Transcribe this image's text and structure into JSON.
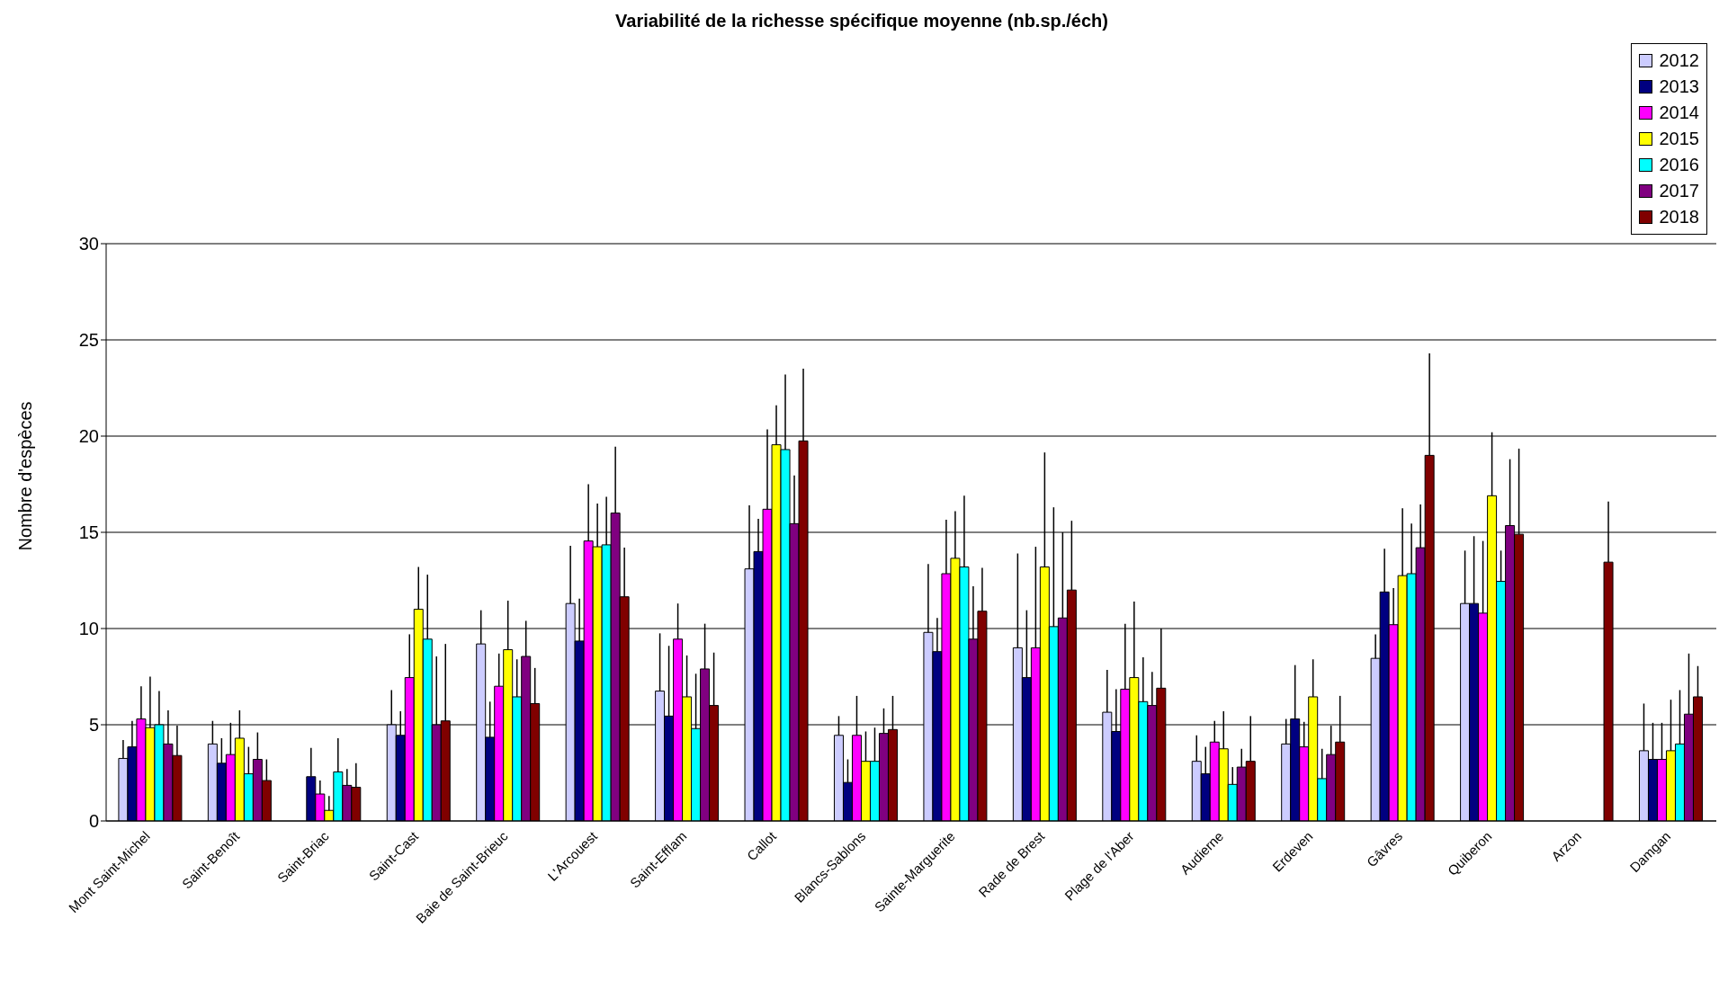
{
  "chart_data": {
    "type": "bar",
    "title": "Variabilité de la richesse spécifique moyenne (nb.sp./éch)",
    "ylabel": "Nombre d'espèces",
    "categories": [
      "Mont Saint-Michel",
      "Saint-Benoît",
      "Saint-Briac",
      "Saint-Cast",
      "Baie de Saint-Brieuc",
      "L'Arcouest",
      "Saint-Efflam",
      "Callot",
      "Blancs-Sablons",
      "Sainte-Marguerite",
      "Rade de Brest",
      "Plage de l'Aber",
      "Audierne",
      "Erdeven",
      "Gâvres",
      "Quiberon",
      "Arzon",
      "Damgan"
    ],
    "ylim": [
      0,
      30
    ],
    "yticks": [
      0,
      5,
      10,
      15,
      20,
      25,
      30
    ],
    "grid": "y",
    "legend": "top right",
    "series": [
      {
        "name": "2012",
        "color": "#ccccff",
        "values": [
          3.25,
          4.0,
          null,
          5.0,
          9.2,
          11.3,
          6.75,
          13.1,
          4.45,
          9.8,
          9.0,
          5.65,
          3.1,
          4.0,
          8.45,
          11.3,
          null,
          3.65
        ],
        "errors": [
          [
            3.25,
            4.2
          ],
          [
            4.0,
            5.2
          ],
          null,
          [
            5.0,
            6.8
          ],
          [
            9.2,
            10.95
          ],
          [
            11.3,
            14.3
          ],
          [
            6.75,
            9.75
          ],
          [
            13.1,
            16.4
          ],
          [
            4.45,
            5.45
          ],
          [
            9.8,
            13.35
          ],
          [
            9.0,
            13.9
          ],
          [
            5.65,
            7.85
          ],
          [
            3.1,
            4.45
          ],
          [
            4.0,
            5.3
          ],
          [
            8.45,
            9.7
          ],
          [
            11.3,
            14.05
          ],
          null,
          [
            3.65,
            6.1
          ]
        ]
      },
      {
        "name": "2013",
        "color": "#000080",
        "values": [
          3.85,
          3.0,
          2.3,
          4.45,
          4.35,
          9.35,
          5.45,
          14.0,
          2.0,
          8.8,
          7.45,
          4.65,
          2.45,
          5.3,
          11.9,
          11.3,
          null,
          3.2
        ],
        "errors": [
          [
            3.85,
            5.2
          ],
          [
            3.0,
            4.3
          ],
          [
            2.3,
            3.8
          ],
          [
            4.45,
            5.7
          ],
          [
            4.35,
            6.2
          ],
          [
            9.35,
            11.55
          ],
          [
            5.45,
            9.1
          ],
          [
            14.0,
            15.7
          ],
          [
            2.0,
            3.2
          ],
          [
            8.8,
            10.55
          ],
          [
            7.45,
            10.95
          ],
          [
            4.65,
            6.85
          ],
          [
            2.45,
            3.85
          ],
          [
            5.3,
            8.1
          ],
          [
            11.9,
            14.15
          ],
          [
            11.3,
            14.8
          ],
          null,
          [
            3.2,
            5.1
          ]
        ]
      },
      {
        "name": "2014",
        "color": "#ff00ff",
        "values": [
          5.3,
          3.45,
          1.4,
          7.45,
          7.0,
          14.55,
          9.45,
          16.2,
          4.45,
          12.85,
          9.0,
          6.85,
          4.1,
          3.85,
          10.2,
          10.8,
          null,
          3.2
        ],
        "errors": [
          [
            5.3,
            7.0
          ],
          [
            3.45,
            5.1
          ],
          [
            1.4,
            2.1
          ],
          [
            7.45,
            9.7
          ],
          [
            7.0,
            8.7
          ],
          [
            14.55,
            17.5
          ],
          [
            9.45,
            11.3
          ],
          [
            16.2,
            20.35
          ],
          [
            4.45,
            6.5
          ],
          [
            12.85,
            15.65
          ],
          [
            9.0,
            14.25
          ],
          [
            6.85,
            10.25
          ],
          [
            4.1,
            5.2
          ],
          [
            3.85,
            5.15
          ],
          [
            10.2,
            12.1
          ],
          [
            10.8,
            14.55
          ],
          null,
          [
            3.2,
            5.1
          ]
        ]
      },
      {
        "name": "2015",
        "color": "#ffff00",
        "values": [
          4.85,
          4.3,
          0.55,
          11.0,
          8.9,
          14.25,
          6.45,
          19.55,
          3.1,
          13.65,
          13.2,
          7.45,
          3.75,
          6.45,
          12.75,
          16.9,
          null,
          3.65
        ],
        "errors": [
          [
            4.85,
            7.5
          ],
          [
            4.3,
            5.75
          ],
          [
            0.55,
            1.3
          ],
          [
            11.0,
            13.2
          ],
          [
            8.9,
            11.45
          ],
          [
            14.25,
            16.5
          ],
          [
            6.45,
            8.6
          ],
          [
            19.55,
            21.6
          ],
          [
            3.1,
            4.65
          ],
          [
            13.65,
            16.1
          ],
          [
            13.2,
            19.15
          ],
          [
            7.45,
            11.4
          ],
          [
            3.75,
            5.7
          ],
          [
            6.45,
            8.4
          ],
          [
            12.75,
            16.25
          ],
          [
            16.9,
            20.2
          ],
          null,
          [
            3.65,
            6.3
          ]
        ]
      },
      {
        "name": "2016",
        "color": "#00ffff",
        "values": [
          5.0,
          2.45,
          2.55,
          9.45,
          6.45,
          14.35,
          4.8,
          19.3,
          3.1,
          13.2,
          10.1,
          6.2,
          1.9,
          2.2,
          12.85,
          12.45,
          null,
          4.0
        ],
        "errors": [
          [
            5.0,
            6.75
          ],
          [
            2.45,
            3.85
          ],
          [
            2.55,
            4.3
          ],
          [
            9.45,
            12.8
          ],
          [
            6.45,
            8.4
          ],
          [
            14.35,
            16.85
          ],
          [
            4.8,
            7.65
          ],
          [
            19.3,
            23.2
          ],
          [
            3.1,
            4.85
          ],
          [
            13.2,
            16.9
          ],
          [
            10.1,
            16.3
          ],
          [
            6.2,
            8.5
          ],
          [
            1.9,
            2.8
          ],
          [
            2.2,
            3.75
          ],
          [
            12.85,
            15.45
          ],
          [
            12.45,
            14.05
          ],
          null,
          [
            4.0,
            6.8
          ]
        ]
      },
      {
        "name": "2017",
        "color": "#800080",
        "values": [
          4.0,
          3.2,
          1.85,
          5.0,
          8.55,
          16.0,
          7.9,
          15.45,
          4.55,
          9.45,
          10.55,
          6.0,
          2.8,
          3.45,
          14.2,
          15.35,
          null,
          5.55
        ],
        "errors": [
          [
            4.0,
            5.75
          ],
          [
            3.2,
            4.6
          ],
          [
            1.85,
            2.7
          ],
          [
            5.0,
            8.55
          ],
          [
            8.55,
            10.4
          ],
          [
            16.0,
            19.45
          ],
          [
            7.9,
            10.25
          ],
          [
            15.45,
            17.95
          ],
          [
            4.55,
            5.85
          ],
          [
            9.45,
            12.2
          ],
          [
            10.55,
            15.0
          ],
          [
            6.0,
            7.75
          ],
          [
            2.8,
            3.75
          ],
          [
            3.45,
            4.95
          ],
          [
            14.2,
            16.45
          ],
          [
            15.35,
            18.8
          ],
          null,
          [
            5.55,
            8.7
          ]
        ]
      },
      {
        "name": "2018",
        "color": "#800000",
        "values": [
          3.4,
          2.1,
          1.75,
          5.2,
          6.1,
          11.65,
          6.0,
          19.75,
          4.75,
          10.9,
          12.0,
          6.9,
          3.1,
          4.1,
          19.0,
          14.9,
          13.45,
          6.45
        ],
        "errors": [
          [
            3.4,
            4.95
          ],
          [
            2.1,
            3.2
          ],
          [
            1.75,
            3.0
          ],
          [
            5.2,
            9.2
          ],
          [
            6.1,
            7.95
          ],
          [
            11.65,
            14.2
          ],
          [
            6.0,
            8.75
          ],
          [
            19.75,
            23.5
          ],
          [
            4.75,
            6.5
          ],
          [
            10.9,
            13.15
          ],
          [
            12.0,
            15.6
          ],
          [
            6.9,
            10.0
          ],
          [
            3.1,
            5.45
          ],
          [
            4.1,
            6.5
          ],
          [
            19.0,
            24.3
          ],
          [
            14.9,
            19.35
          ],
          [
            13.45,
            16.6
          ],
          [
            6.45,
            8.05
          ]
        ]
      }
    ]
  }
}
